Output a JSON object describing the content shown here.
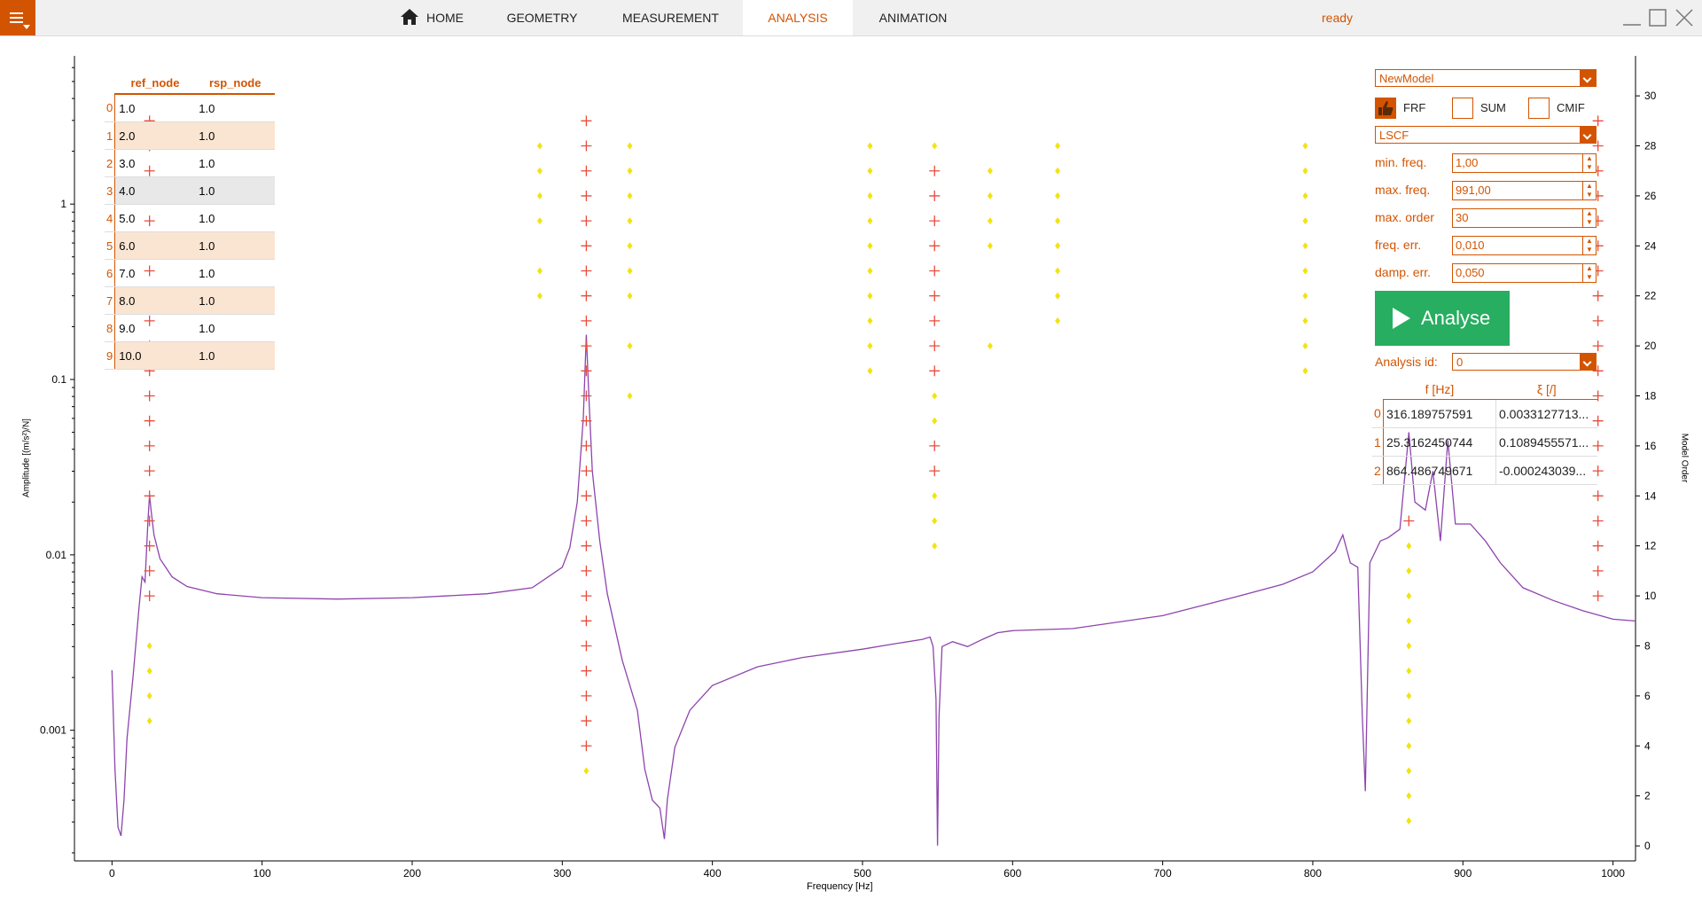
{
  "header": {
    "tabs": [
      {
        "label": "HOME",
        "icon": "home-icon",
        "active": false
      },
      {
        "label": "GEOMETRY",
        "active": false
      },
      {
        "label": "MEASUREMENT",
        "active": false
      },
      {
        "label": "ANALYSIS",
        "active": true
      },
      {
        "label": "ANIMATION",
        "active": false
      }
    ],
    "status": "ready",
    "accent_color": "#d35400"
  },
  "node_table": {
    "headers": [
      "ref_node",
      "rsp_node"
    ],
    "rows": [
      {
        "idx": "0",
        "ref": "1.0",
        "rsp": "1.0"
      },
      {
        "idx": "1",
        "ref": "2.0",
        "rsp": "1.0"
      },
      {
        "idx": "2",
        "ref": "3.0",
        "rsp": "1.0"
      },
      {
        "idx": "3",
        "ref": "4.0",
        "rsp": "1.0"
      },
      {
        "idx": "4",
        "ref": "5.0",
        "rsp": "1.0"
      },
      {
        "idx": "5",
        "ref": "6.0",
        "rsp": "1.0"
      },
      {
        "idx": "6",
        "ref": "7.0",
        "rsp": "1.0"
      },
      {
        "idx": "7",
        "ref": "8.0",
        "rsp": "1.0"
      },
      {
        "idx": "8",
        "ref": "9.0",
        "rsp": "1.0"
      },
      {
        "idx": "9",
        "ref": "10.0",
        "rsp": "1.0"
      }
    ]
  },
  "controls": {
    "model_select": "NewModel",
    "frf_label": "FRF",
    "sum_label": "SUM",
    "cmif_label": "CMIF",
    "method_select": "LSCF",
    "fields": [
      {
        "label": "min. freq.",
        "value": "1,00"
      },
      {
        "label": "max. freq.",
        "value": "991,00"
      },
      {
        "label": "max. order",
        "value": "30"
      },
      {
        "label": "freq. err.",
        "value": "0,010"
      },
      {
        "label": "damp. err.",
        "value": "0,050"
      }
    ],
    "analyse_label": "Analyse",
    "analysis_id_label": "Analysis id:",
    "analysis_id_value": "0"
  },
  "modes_table": {
    "headers": [
      "f [Hz]",
      "ξ [/]"
    ],
    "rows": [
      {
        "idx": "0",
        "f": "316.189757591",
        "xi": "0.0033127713..."
      },
      {
        "idx": "1",
        "f": "25.3162450744",
        "xi": "0.1089455571..."
      },
      {
        "idx": "2",
        "f": "864.486749671",
        "xi": "-0.000243039..."
      }
    ]
  },
  "chart_data": {
    "type": "line",
    "xlabel": "Frequency [Hz]",
    "ylabel": "Amplitude [(m/s²)/N]",
    "y2label": "Model Order",
    "xlim": [
      -25,
      1015
    ],
    "ylim_log": [
      0.00018,
      7.0
    ],
    "y2lim": [
      -0.6,
      31.6
    ],
    "x_ticks": [
      0,
      100,
      200,
      300,
      400,
      500,
      600,
      700,
      800,
      900,
      1000
    ],
    "y_ticks": [
      {
        "v": 1,
        "label": "1"
      },
      {
        "v": 0.1,
        "label": "0.1"
      },
      {
        "v": 0.01,
        "label": "0.01"
      },
      {
        "v": 0.001,
        "label": "0.001"
      }
    ],
    "y2_ticks": [
      0,
      2,
      4,
      6,
      8,
      10,
      12,
      14,
      16,
      18,
      20,
      22,
      24,
      26,
      28,
      30
    ],
    "frf_color": "#8e44ad",
    "stable_color": "#e74c3c",
    "unstable_color": "#f1e40f",
    "frf": [
      [
        0,
        0.0022
      ],
      [
        2,
        0.0006
      ],
      [
        4,
        0.00028
      ],
      [
        6,
        0.00025
      ],
      [
        8,
        0.0004
      ],
      [
        10,
        0.0009
      ],
      [
        14,
        0.002
      ],
      [
        18,
        0.005
      ],
      [
        20,
        0.0075
      ],
      [
        22,
        0.007
      ],
      [
        24,
        0.016
      ],
      [
        25,
        0.022
      ],
      [
        26,
        0.018
      ],
      [
        28,
        0.013
      ],
      [
        32,
        0.0095
      ],
      [
        40,
        0.0075
      ],
      [
        50,
        0.0066
      ],
      [
        70,
        0.006
      ],
      [
        100,
        0.0057
      ],
      [
        150,
        0.0056
      ],
      [
        200,
        0.0057
      ],
      [
        250,
        0.006
      ],
      [
        280,
        0.0065
      ],
      [
        300,
        0.0085
      ],
      [
        305,
        0.011
      ],
      [
        310,
        0.02
      ],
      [
        314,
        0.06
      ],
      [
        316,
        0.18
      ],
      [
        318,
        0.07
      ],
      [
        320,
        0.03
      ],
      [
        325,
        0.012
      ],
      [
        330,
        0.006
      ],
      [
        340,
        0.0025
      ],
      [
        350,
        0.0013
      ],
      [
        355,
        0.0006
      ],
      [
        360,
        0.0004
      ],
      [
        365,
        0.00036
      ],
      [
        368,
        0.00024
      ],
      [
        370,
        0.0004
      ],
      [
        375,
        0.0008
      ],
      [
        385,
        0.0013
      ],
      [
        400,
        0.0018
      ],
      [
        430,
        0.0023
      ],
      [
        460,
        0.0026
      ],
      [
        500,
        0.0029
      ],
      [
        520,
        0.0031
      ],
      [
        540,
        0.0033
      ],
      [
        545,
        0.0034
      ],
      [
        547,
        0.003
      ],
      [
        549,
        0.0015
      ],
      [
        550,
        0.00022
      ],
      [
        551,
        0.0012
      ],
      [
        553,
        0.003
      ],
      [
        560,
        0.0032
      ],
      [
        570,
        0.003
      ],
      [
        580,
        0.0033
      ],
      [
        590,
        0.0036
      ],
      [
        600,
        0.0037
      ],
      [
        640,
        0.0038
      ],
      [
        700,
        0.0045
      ],
      [
        750,
        0.0058
      ],
      [
        780,
        0.0068
      ],
      [
        800,
        0.008
      ],
      [
        815,
        0.0105
      ],
      [
        820,
        0.013
      ],
      [
        825,
        0.009
      ],
      [
        830,
        0.0085
      ],
      [
        833,
        0.0012
      ],
      [
        835,
        0.00045
      ],
      [
        838,
        0.009
      ],
      [
        845,
        0.012
      ],
      [
        850,
        0.0125
      ],
      [
        858,
        0.014
      ],
      [
        864,
        0.05
      ],
      [
        868,
        0.02
      ],
      [
        875,
        0.018
      ],
      [
        880,
        0.03
      ],
      [
        885,
        0.012
      ],
      [
        890,
        0.045
      ],
      [
        895,
        0.015
      ],
      [
        905,
        0.015
      ],
      [
        915,
        0.012
      ],
      [
        925,
        0.009
      ],
      [
        940,
        0.0065
      ],
      [
        960,
        0.0055
      ],
      [
        980,
        0.0048
      ],
      [
        1000,
        0.0043
      ],
      [
        1015,
        0.0042
      ]
    ],
    "stable_points": [
      [
        25,
        10
      ],
      [
        25,
        11
      ],
      [
        25,
        12
      ],
      [
        25,
        13
      ],
      [
        25,
        14
      ],
      [
        25,
        15
      ],
      [
        25,
        16
      ],
      [
        25,
        17
      ],
      [
        25,
        18
      ],
      [
        25,
        19
      ],
      [
        25,
        20
      ],
      [
        25,
        21
      ],
      [
        25,
        22
      ],
      [
        25,
        23
      ],
      [
        25,
        24
      ],
      [
        25,
        25
      ],
      [
        25,
        26
      ],
      [
        25,
        27
      ],
      [
        25,
        28
      ],
      [
        25,
        29
      ],
      [
        316,
        4
      ],
      [
        316,
        5
      ],
      [
        316,
        6
      ],
      [
        316,
        7
      ],
      [
        316,
        8
      ],
      [
        316,
        9
      ],
      [
        316,
        10
      ],
      [
        316,
        11
      ],
      [
        316,
        12
      ],
      [
        316,
        13
      ],
      [
        316,
        14
      ],
      [
        316,
        15
      ],
      [
        316,
        16
      ],
      [
        316,
        17
      ],
      [
        316,
        18
      ],
      [
        316,
        19
      ],
      [
        316,
        20
      ],
      [
        316,
        21
      ],
      [
        316,
        22
      ],
      [
        316,
        23
      ],
      [
        316,
        24
      ],
      [
        316,
        25
      ],
      [
        316,
        26
      ],
      [
        316,
        27
      ],
      [
        316,
        28
      ],
      [
        316,
        29
      ],
      [
        548,
        15
      ],
      [
        548,
        16
      ],
      [
        548,
        19
      ],
      [
        548,
        20
      ],
      [
        548,
        21
      ],
      [
        548,
        22
      ],
      [
        548,
        23
      ],
      [
        548,
        24
      ],
      [
        548,
        25
      ],
      [
        548,
        26
      ],
      [
        548,
        27
      ],
      [
        864,
        13
      ],
      [
        990,
        10
      ],
      [
        990,
        11
      ],
      [
        990,
        12
      ],
      [
        990,
        13
      ],
      [
        990,
        14
      ],
      [
        990,
        15
      ],
      [
        990,
        16
      ],
      [
        990,
        17
      ],
      [
        990,
        18
      ],
      [
        990,
        19
      ],
      [
        990,
        20
      ],
      [
        990,
        21
      ],
      [
        990,
        22
      ],
      [
        990,
        23
      ],
      [
        990,
        24
      ],
      [
        990,
        25
      ],
      [
        990,
        26
      ],
      [
        990,
        27
      ],
      [
        990,
        28
      ],
      [
        990,
        29
      ]
    ],
    "unstable_points": [
      [
        25,
        5
      ],
      [
        25,
        6
      ],
      [
        25,
        7
      ],
      [
        25,
        8
      ],
      [
        316,
        3
      ],
      [
        864,
        1
      ],
      [
        864,
        2
      ],
      [
        864,
        3
      ],
      [
        864,
        4
      ],
      [
        864,
        5
      ],
      [
        864,
        6
      ],
      [
        864,
        7
      ],
      [
        864,
        8
      ],
      [
        864,
        9
      ],
      [
        864,
        10
      ],
      [
        864,
        11
      ],
      [
        864,
        12
      ],
      [
        548,
        12
      ],
      [
        548,
        13
      ],
      [
        548,
        14
      ],
      [
        548,
        17
      ],
      [
        548,
        18
      ],
      [
        548,
        28
      ],
      [
        505,
        19
      ],
      [
        505,
        20
      ],
      [
        505,
        21
      ],
      [
        505,
        22
      ],
      [
        505,
        23
      ],
      [
        505,
        24
      ],
      [
        505,
        25
      ],
      [
        505,
        26
      ],
      [
        505,
        27
      ],
      [
        505,
        28
      ],
      [
        585,
        20
      ],
      [
        585,
        24
      ],
      [
        585,
        25
      ],
      [
        585,
        26
      ],
      [
        585,
        27
      ],
      [
        630,
        21
      ],
      [
        630,
        22
      ],
      [
        630,
        23
      ],
      [
        630,
        24
      ],
      [
        630,
        25
      ],
      [
        630,
        26
      ],
      [
        630,
        27
      ],
      [
        630,
        28
      ],
      [
        795,
        19
      ],
      [
        795,
        20
      ],
      [
        795,
        21
      ],
      [
        795,
        22
      ],
      [
        795,
        23
      ],
      [
        795,
        24
      ],
      [
        795,
        25
      ],
      [
        795,
        26
      ],
      [
        795,
        27
      ],
      [
        795,
        28
      ],
      [
        285,
        22
      ],
      [
        285,
        23
      ],
      [
        285,
        25
      ],
      [
        285,
        26
      ],
      [
        285,
        27
      ],
      [
        285,
        28
      ],
      [
        345,
        18
      ],
      [
        345,
        20
      ],
      [
        345,
        22
      ],
      [
        345,
        23
      ],
      [
        345,
        24
      ],
      [
        345,
        25
      ],
      [
        345,
        26
      ],
      [
        345,
        27
      ],
      [
        345,
        28
      ]
    ]
  }
}
